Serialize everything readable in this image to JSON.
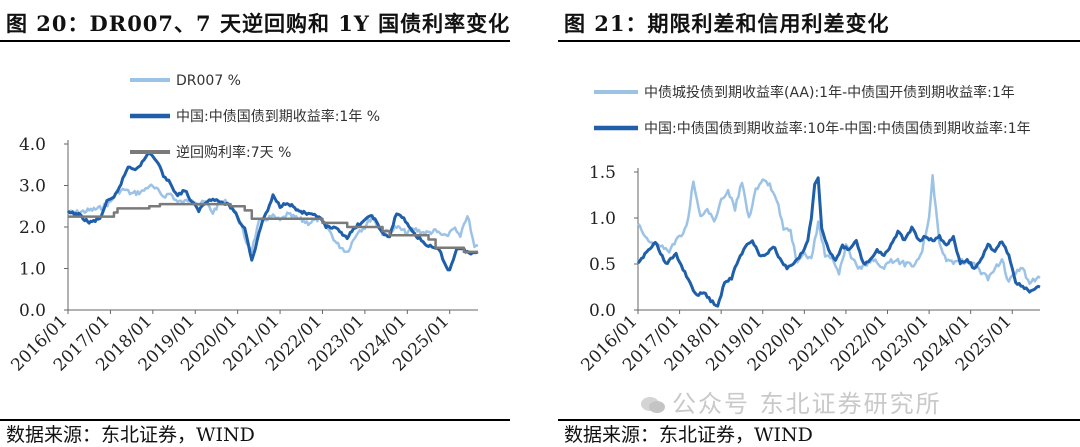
{
  "panels": [
    {
      "title": "图 20：DR007、7 天逆回购和 1Y 国债利率变化",
      "source": "数据来源：东北证券，WIND"
    },
    {
      "title": "图 21：期限利差和信用利差变化",
      "source": "数据来源：东北证券，WIND"
    }
  ],
  "watermark": "公众号 东北证券研究所",
  "chart_data": [
    {
      "type": "line",
      "title": "",
      "xlabel": "",
      "ylabel": "",
      "x_range": [
        "2016/01",
        "2025/09"
      ],
      "ylim": [
        0.0,
        4.0
      ],
      "yticks": [
        "0.0",
        "1.0",
        "2.0",
        "3.0",
        "4.0"
      ],
      "xticks": [
        "2016/01",
        "2017/01",
        "2018/01",
        "2019/01",
        "2020/01",
        "2021/01",
        "2022/01",
        "2023/01",
        "2024/01",
        "2025/01"
      ],
      "legend_position": "top-left",
      "series": [
        {
          "name": "DR007 %",
          "color": "#9cc3e6",
          "width": 2.5,
          "points": [
            [
              "2016/01",
              2.35
            ],
            [
              "2016/04",
              2.35
            ],
            [
              "2016/07",
              2.4
            ],
            [
              "2016/10",
              2.45
            ],
            [
              "2017/01",
              2.6
            ],
            [
              "2017/03",
              2.85
            ],
            [
              "2017/05",
              2.9
            ],
            [
              "2017/07",
              2.8
            ],
            [
              "2017/10",
              2.85
            ],
            [
              "2017/12",
              3.0
            ],
            [
              "2018/02",
              2.9
            ],
            [
              "2018/04",
              2.75
            ],
            [
              "2018/06",
              2.8
            ],
            [
              "2018/08",
              2.6
            ],
            [
              "2018/10",
              2.6
            ],
            [
              "2018/12",
              2.7
            ],
            [
              "2019/02",
              2.55
            ],
            [
              "2019/04",
              2.6
            ],
            [
              "2019/06",
              2.35
            ],
            [
              "2019/08",
              2.6
            ],
            [
              "2019/10",
              2.6
            ],
            [
              "2019/12",
              2.4
            ],
            [
              "2020/02",
              2.05
            ],
            [
              "2020/03",
              1.7
            ],
            [
              "2020/05",
              1.45
            ],
            [
              "2020/07",
              2.1
            ],
            [
              "2020/09",
              2.2
            ],
            [
              "2020/11",
              2.25
            ],
            [
              "2021/01",
              2.15
            ],
            [
              "2021/03",
              2.3
            ],
            [
              "2021/06",
              2.2
            ],
            [
              "2021/09",
              2.1
            ],
            [
              "2021/12",
              2.2
            ],
            [
              "2022/02",
              2.05
            ],
            [
              "2022/05",
              1.6
            ],
            [
              "2022/08",
              1.4
            ],
            [
              "2022/11",
              1.9
            ],
            [
              "2023/01",
              2.0
            ],
            [
              "2023/03",
              2.25
            ],
            [
              "2023/06",
              1.85
            ],
            [
              "2023/08",
              1.9
            ],
            [
              "2023/10",
              2.0
            ],
            [
              "2024/01",
              1.85
            ],
            [
              "2024/03",
              1.95
            ],
            [
              "2024/06",
              1.85
            ],
            [
              "2024/09",
              1.9
            ],
            [
              "2024/12",
              1.75
            ],
            [
              "2025/02",
              2.0
            ],
            [
              "2025/04",
              1.75
            ],
            [
              "2025/06",
              2.3
            ],
            [
              "2025/08",
              1.5
            ],
            [
              "2025/09",
              1.55
            ]
          ]
        },
        {
          "name": "中国:中债国债到期收益率:1年 %",
          "color": "#1f5faa",
          "width": 3,
          "points": [
            [
              "2016/01",
              2.35
            ],
            [
              "2016/04",
              2.3
            ],
            [
              "2016/07",
              2.1
            ],
            [
              "2016/10",
              2.2
            ],
            [
              "2016/12",
              2.6
            ],
            [
              "2017/02",
              2.7
            ],
            [
              "2017/04",
              3.05
            ],
            [
              "2017/06",
              3.45
            ],
            [
              "2017/08",
              3.4
            ],
            [
              "2017/10",
              3.55
            ],
            [
              "2017/12",
              3.8
            ],
            [
              "2018/02",
              3.6
            ],
            [
              "2018/04",
              3.25
            ],
            [
              "2018/06",
              3.05
            ],
            [
              "2018/08",
              2.75
            ],
            [
              "2018/10",
              2.9
            ],
            [
              "2018/12",
              2.6
            ],
            [
              "2019/02",
              2.4
            ],
            [
              "2019/04",
              2.6
            ],
            [
              "2019/06",
              2.7
            ],
            [
              "2019/08",
              2.6
            ],
            [
              "2019/10",
              2.55
            ],
            [
              "2019/12",
              2.4
            ],
            [
              "2020/02",
              2.05
            ],
            [
              "2020/03",
              2.0
            ],
            [
              "2020/05",
              1.2
            ],
            [
              "2020/06",
              1.5
            ],
            [
              "2020/08",
              2.15
            ],
            [
              "2020/10",
              2.5
            ],
            [
              "2020/11",
              2.75
            ],
            [
              "2021/01",
              2.5
            ],
            [
              "2021/03",
              2.6
            ],
            [
              "2021/06",
              2.4
            ],
            [
              "2021/09",
              2.3
            ],
            [
              "2021/12",
              2.25
            ],
            [
              "2022/02",
              2.0
            ],
            [
              "2022/05",
              1.95
            ],
            [
              "2022/08",
              1.75
            ],
            [
              "2022/11",
              2.05
            ],
            [
              "2023/01",
              2.15
            ],
            [
              "2023/03",
              2.3
            ],
            [
              "2023/06",
              1.85
            ],
            [
              "2023/08",
              1.75
            ],
            [
              "2023/10",
              2.35
            ],
            [
              "2023/12",
              2.2
            ],
            [
              "2024/02",
              1.95
            ],
            [
              "2024/04",
              1.75
            ],
            [
              "2024/06",
              1.6
            ],
            [
              "2024/08",
              1.5
            ],
            [
              "2024/10",
              1.45
            ],
            [
              "2024/12",
              1.05
            ],
            [
              "2025/01",
              0.95
            ],
            [
              "2025/03",
              1.5
            ],
            [
              "2025/05",
              1.45
            ],
            [
              "2025/07",
              1.35
            ],
            [
              "2025/09",
              1.4
            ]
          ]
        },
        {
          "name": "逆回购利率:7天 %",
          "color": "#7a7a7a",
          "width": 2.5,
          "step": true,
          "points": [
            [
              "2016/01",
              2.25
            ],
            [
              "2017/02",
              2.35
            ],
            [
              "2017/03",
              2.45
            ],
            [
              "2017/12",
              2.5
            ],
            [
              "2018/03",
              2.55
            ],
            [
              "2019/11",
              2.5
            ],
            [
              "2020/03",
              2.4
            ],
            [
              "2020/05",
              2.2
            ],
            [
              "2022/01",
              2.1
            ],
            [
              "2022/08",
              2.0
            ],
            [
              "2023/06",
              1.9
            ],
            [
              "2023/08",
              1.8
            ],
            [
              "2024/07",
              1.7
            ],
            [
              "2024/09",
              1.5
            ],
            [
              "2025/05",
              1.4
            ],
            [
              "2025/09",
              1.4
            ]
          ]
        }
      ]
    },
    {
      "type": "line",
      "title": "",
      "xlabel": "",
      "ylabel": "",
      "x_range": [
        "2016/01",
        "2025/09"
      ],
      "ylim": [
        0.0,
        1.5
      ],
      "yticks": [
        "0.0",
        "0.5",
        "1.0",
        "1.5"
      ],
      "xticks": [
        "2016/01",
        "2017/01",
        "2018/01",
        "2019/01",
        "2020/01",
        "2021/01",
        "2022/01",
        "2023/01",
        "2024/01",
        "2025/01"
      ],
      "legend_position": "top-left",
      "series": [
        {
          "name": "中债城投债到期收益率(AA):1年-中债国开债到期收益率:1年",
          "color": "#9cc3e6",
          "width": 2.5,
          "points": [
            [
              "2016/01",
              0.95
            ],
            [
              "2016/04",
              0.75
            ],
            [
              "2016/07",
              0.7
            ],
            [
              "2016/10",
              0.65
            ],
            [
              "2017/01",
              0.8
            ],
            [
              "2017/03",
              0.9
            ],
            [
              "2017/05",
              1.4
            ],
            [
              "2017/07",
              1.0
            ],
            [
              "2017/09",
              1.1
            ],
            [
              "2017/11",
              0.95
            ],
            [
              "2018/01",
              1.2
            ],
            [
              "2018/03",
              1.3
            ],
            [
              "2018/05",
              1.1
            ],
            [
              "2018/07",
              1.4
            ],
            [
              "2018/09",
              1.0
            ],
            [
              "2018/11",
              1.3
            ],
            [
              "2019/01",
              1.4
            ],
            [
              "2019/03",
              1.35
            ],
            [
              "2019/05",
              1.2
            ],
            [
              "2019/07",
              0.9
            ],
            [
              "2019/09",
              0.85
            ],
            [
              "2019/11",
              0.5
            ],
            [
              "2020/01",
              0.6
            ],
            [
              "2020/03",
              0.55
            ],
            [
              "2020/05",
              0.95
            ],
            [
              "2020/07",
              0.6
            ],
            [
              "2020/09",
              0.55
            ],
            [
              "2020/11",
              0.4
            ],
            [
              "2021/01",
              0.7
            ],
            [
              "2021/03",
              0.55
            ],
            [
              "2021/05",
              0.45
            ],
            [
              "2021/07",
              0.5
            ],
            [
              "2021/09",
              0.55
            ],
            [
              "2021/11",
              0.45
            ],
            [
              "2022/01",
              0.5
            ],
            [
              "2022/03",
              0.55
            ],
            [
              "2022/06",
              0.5
            ],
            [
              "2022/09",
              0.5
            ],
            [
              "2022/11",
              0.65
            ],
            [
              "2023/01",
              1.0
            ],
            [
              "2023/02",
              1.45
            ],
            [
              "2023/04",
              0.7
            ],
            [
              "2023/06",
              0.55
            ],
            [
              "2023/08",
              0.5
            ],
            [
              "2023/10",
              0.55
            ],
            [
              "2023/12",
              0.5
            ],
            [
              "2024/02",
              0.5
            ],
            [
              "2024/04",
              0.4
            ],
            [
              "2024/06",
              0.35
            ],
            [
              "2024/08",
              0.45
            ],
            [
              "2024/10",
              0.55
            ],
            [
              "2024/12",
              0.3
            ],
            [
              "2025/02",
              0.4
            ],
            [
              "2025/04",
              0.45
            ],
            [
              "2025/06",
              0.3
            ],
            [
              "2025/09",
              0.35
            ]
          ]
        },
        {
          "name": "中国:中债国债到期收益率:10年-中国:中债国债到期收益率:1年",
          "color": "#1f5faa",
          "width": 3,
          "points": [
            [
              "2016/01",
              0.5
            ],
            [
              "2016/03",
              0.6
            ],
            [
              "2016/06",
              0.75
            ],
            [
              "2016/09",
              0.5
            ],
            [
              "2016/12",
              0.6
            ],
            [
              "2017/02",
              0.45
            ],
            [
              "2017/04",
              0.3
            ],
            [
              "2017/06",
              0.15
            ],
            [
              "2017/08",
              0.2
            ],
            [
              "2017/10",
              0.1
            ],
            [
              "2017/12",
              0.05
            ],
            [
              "2018/02",
              0.3
            ],
            [
              "2018/04",
              0.35
            ],
            [
              "2018/06",
              0.55
            ],
            [
              "2018/08",
              0.7
            ],
            [
              "2018/10",
              0.75
            ],
            [
              "2018/12",
              0.6
            ],
            [
              "2019/02",
              0.6
            ],
            [
              "2019/04",
              0.7
            ],
            [
              "2019/06",
              0.55
            ],
            [
              "2019/08",
              0.45
            ],
            [
              "2019/10",
              0.5
            ],
            [
              "2019/12",
              0.6
            ],
            [
              "2020/02",
              0.75
            ],
            [
              "2020/03",
              1.0
            ],
            [
              "2020/04",
              1.35
            ],
            [
              "2020/05",
              1.45
            ],
            [
              "2020/06",
              0.9
            ],
            [
              "2020/08",
              0.65
            ],
            [
              "2020/10",
              0.55
            ],
            [
              "2020/12",
              0.7
            ],
            [
              "2021/02",
              0.65
            ],
            [
              "2021/04",
              0.75
            ],
            [
              "2021/06",
              0.5
            ],
            [
              "2021/08",
              0.55
            ],
            [
              "2021/10",
              0.65
            ],
            [
              "2021/12",
              0.6
            ],
            [
              "2022/02",
              0.7
            ],
            [
              "2022/04",
              0.85
            ],
            [
              "2022/06",
              0.75
            ],
            [
              "2022/08",
              0.9
            ],
            [
              "2022/10",
              0.75
            ],
            [
              "2022/12",
              0.8
            ],
            [
              "2023/02",
              0.75
            ],
            [
              "2023/04",
              0.8
            ],
            [
              "2023/06",
              0.7
            ],
            [
              "2023/08",
              0.8
            ],
            [
              "2023/10",
              0.5
            ],
            [
              "2023/12",
              0.55
            ],
            [
              "2024/02",
              0.45
            ],
            [
              "2024/04",
              0.55
            ],
            [
              "2024/06",
              0.7
            ],
            [
              "2024/08",
              0.65
            ],
            [
              "2024/10",
              0.75
            ],
            [
              "2024/12",
              0.6
            ],
            [
              "2025/02",
              0.3
            ],
            [
              "2025/04",
              0.25
            ],
            [
              "2025/06",
              0.2
            ],
            [
              "2025/09",
              0.25
            ]
          ]
        }
      ]
    }
  ]
}
